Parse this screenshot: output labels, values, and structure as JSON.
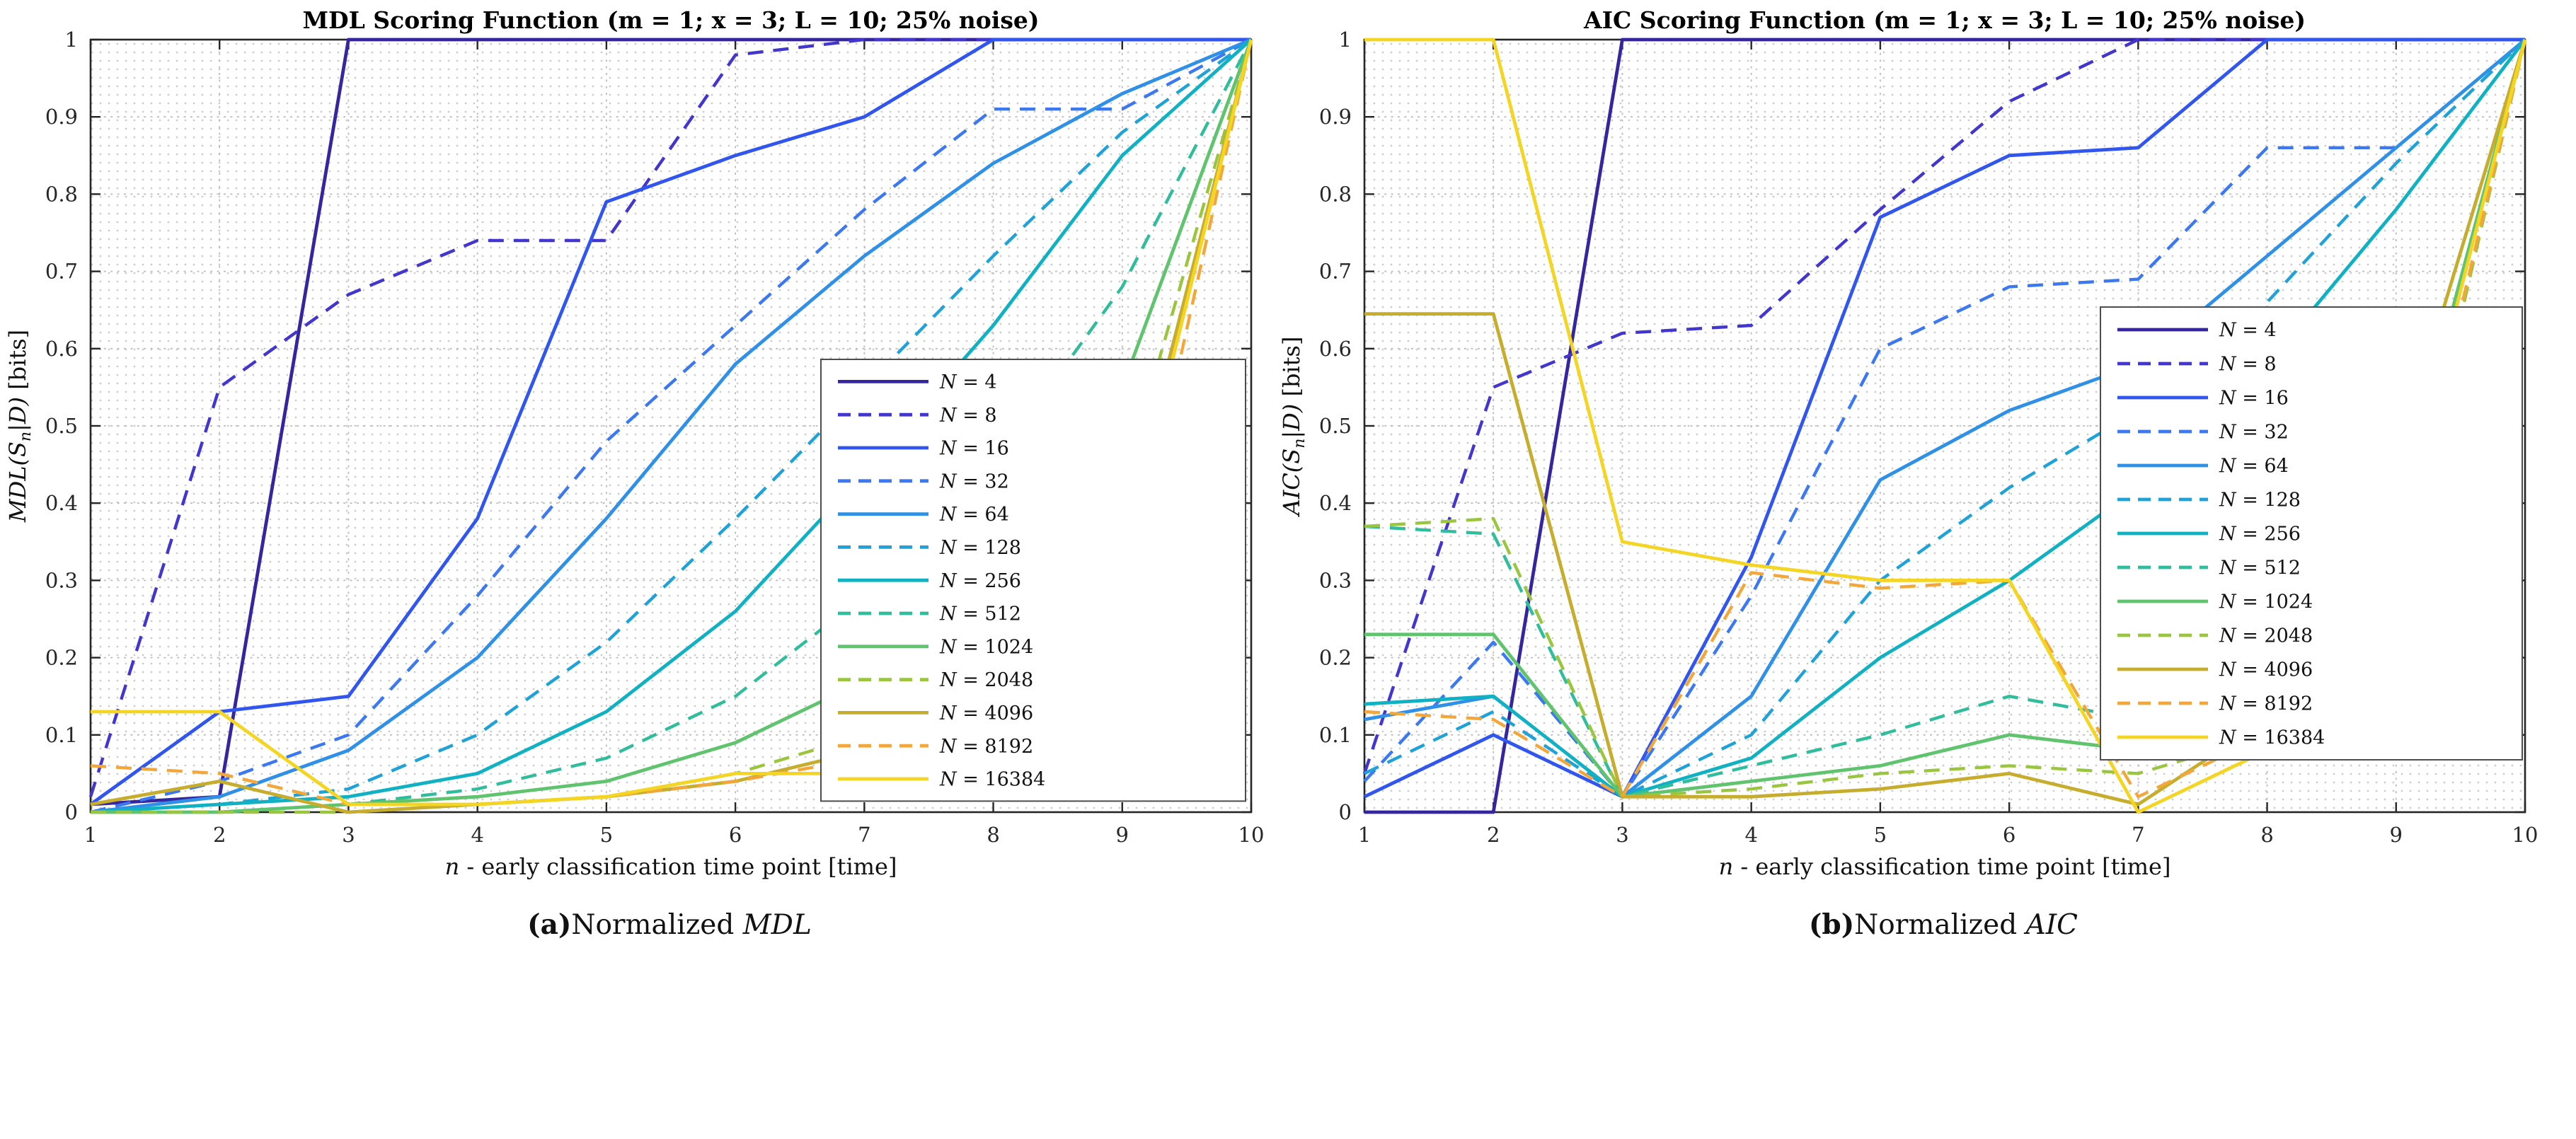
{
  "page": {
    "background": "#ffffff"
  },
  "captions": [
    {
      "label": "(a)",
      "text": "Normalized ",
      "math": "MDL"
    },
    {
      "label": "(b)",
      "text": "Normalized ",
      "math": "AIC"
    }
  ],
  "chart_data": [
    {
      "type": "line",
      "title": "MDL Scoring Function (m = 1; x = 3; L = 10; 25% noise)",
      "xlabel": {
        "var": "n",
        "rest": "- early classification time point",
        "unit": "[time]"
      },
      "ylabel": {
        "fn": "MDL",
        "arg": "S",
        "sub": "n",
        "given": "D",
        "unit": "[bits]"
      },
      "xlim": [
        1,
        10
      ],
      "ylim": [
        0,
        1
      ],
      "grid": "dotted",
      "legend_position": "right-inside",
      "x": [
        1,
        2,
        3,
        4,
        5,
        6,
        7,
        8,
        9,
        10
      ],
      "xticks": [
        "1",
        "2",
        "3",
        "4",
        "5",
        "6",
        "7",
        "8",
        "9",
        "10"
      ],
      "yticks": [
        "0",
        "0.1",
        "0.2",
        "0.3",
        "0.4",
        "0.5",
        "0.6",
        "0.7",
        "0.8",
        "0.9",
        "1"
      ],
      "series": [
        {
          "name": "N = 4",
          "style": "solid",
          "color": "#35269f",
          "values": [
            0.01,
            0.02,
            1,
            1,
            1,
            1,
            1,
            1,
            1,
            1
          ]
        },
        {
          "name": "N = 8",
          "style": "dashed",
          "color": "#4236cf",
          "values": [
            0.02,
            0.55,
            0.67,
            0.74,
            0.74,
            0.98,
            1,
            1,
            1,
            1
          ]
        },
        {
          "name": "N = 16",
          "style": "solid",
          "color": "#3156f0",
          "values": [
            0.01,
            0.13,
            0.15,
            0.38,
            0.79,
            0.85,
            0.9,
            1,
            1,
            1
          ]
        },
        {
          "name": "N = 32",
          "style": "dashed",
          "color": "#3b78f2",
          "values": [
            0.0,
            0.04,
            0.1,
            0.28,
            0.48,
            0.63,
            0.78,
            0.91,
            0.91,
            1
          ]
        },
        {
          "name": "N = 64",
          "style": "solid",
          "color": "#2e90e6",
          "values": [
            0.0,
            0.02,
            0.08,
            0.2,
            0.38,
            0.58,
            0.72,
            0.84,
            0.93,
            1
          ]
        },
        {
          "name": "N = 128",
          "style": "dashed",
          "color": "#1ea2d8",
          "values": [
            0.0,
            0.01,
            0.03,
            0.1,
            0.22,
            0.38,
            0.55,
            0.72,
            0.88,
            1
          ]
        },
        {
          "name": "N = 256",
          "style": "solid",
          "color": "#0fb1c2",
          "values": [
            0.0,
            0.01,
            0.02,
            0.05,
            0.13,
            0.26,
            0.44,
            0.63,
            0.85,
            1
          ]
        },
        {
          "name": "N = 512",
          "style": "dashed",
          "color": "#2fbd9b",
          "values": [
            0.0,
            0.0,
            0.01,
            0.03,
            0.07,
            0.15,
            0.28,
            0.45,
            0.68,
            1
          ]
        },
        {
          "name": "N = 1024",
          "style": "solid",
          "color": "#5fc46d",
          "values": [
            0.0,
            0.0,
            0.01,
            0.02,
            0.04,
            0.09,
            0.17,
            0.32,
            0.55,
            1
          ]
        },
        {
          "name": "N = 2048",
          "style": "dashed",
          "color": "#9ac63f",
          "values": [
            0.0,
            0.0,
            0.0,
            0.01,
            0.02,
            0.05,
            0.1,
            0.2,
            0.42,
            1
          ]
        },
        {
          "name": "N = 4096",
          "style": "solid",
          "color": "#c6ad2d",
          "values": [
            0.01,
            0.04,
            0.0,
            0.01,
            0.02,
            0.04,
            0.08,
            0.15,
            0.35,
            1
          ]
        },
        {
          "name": "N = 8192",
          "style": "dashed",
          "color": "#f3a73b",
          "values": [
            0.06,
            0.05,
            0.01,
            0.01,
            0.02,
            0.04,
            0.07,
            0.12,
            0.25,
            1
          ]
        },
        {
          "name": "N = 16384",
          "style": "solid",
          "color": "#f4d523",
          "values": [
            0.13,
            0.13,
            0.01,
            0.01,
            0.02,
            0.05,
            0.05,
            0.06,
            0.32,
            1
          ]
        }
      ]
    },
    {
      "type": "line",
      "title": "AIC Scoring Function (m = 1; x = 3; L = 10; 25% noise)",
      "xlabel": {
        "var": "n",
        "rest": "- early classification time point",
        "unit": "[time]"
      },
      "ylabel": {
        "fn": "AIC",
        "arg": "S",
        "sub": "n",
        "given": "D",
        "unit": "[bits]"
      },
      "xlim": [
        1,
        10
      ],
      "ylim": [
        0,
        1
      ],
      "grid": "dotted",
      "legend_position": "right-inside",
      "x": [
        1,
        2,
        3,
        4,
        5,
        6,
        7,
        8,
        9,
        10
      ],
      "xticks": [
        "1",
        "2",
        "3",
        "4",
        "5",
        "6",
        "7",
        "8",
        "9",
        "10"
      ],
      "yticks": [
        "0",
        "0.1",
        "0.2",
        "0.3",
        "0.4",
        "0.5",
        "0.6",
        "0.7",
        "0.8",
        "0.9",
        "1"
      ],
      "series": [
        {
          "name": "N = 4",
          "style": "solid",
          "color": "#35269f",
          "values": [
            0.0,
            0.0,
            1,
            1,
            1,
            1,
            1,
            1,
            1,
            1
          ]
        },
        {
          "name": "N = 8",
          "style": "dashed",
          "color": "#4236cf",
          "values": [
            0.05,
            0.55,
            0.62,
            0.63,
            0.78,
            0.92,
            1,
            1,
            1,
            1
          ]
        },
        {
          "name": "N = 16",
          "style": "solid",
          "color": "#3156f0",
          "values": [
            0.02,
            0.1,
            0.02,
            0.33,
            0.77,
            0.85,
            0.86,
            1,
            1,
            1
          ]
        },
        {
          "name": "N = 32",
          "style": "dashed",
          "color": "#3b78f2",
          "values": [
            0.04,
            0.22,
            0.02,
            0.28,
            0.6,
            0.68,
            0.69,
            0.86,
            0.86,
            1
          ]
        },
        {
          "name": "N = 64",
          "style": "solid",
          "color": "#2e90e6",
          "values": [
            0.12,
            0.15,
            0.02,
            0.15,
            0.43,
            0.52,
            0.58,
            0.72,
            0.86,
            1
          ]
        },
        {
          "name": "N = 128",
          "style": "dashed",
          "color": "#1ea2d8",
          "values": [
            0.05,
            0.13,
            0.02,
            0.1,
            0.3,
            0.42,
            0.52,
            0.66,
            0.84,
            1
          ]
        },
        {
          "name": "N = 256",
          "style": "solid",
          "color": "#0fb1c2",
          "values": [
            0.14,
            0.15,
            0.02,
            0.07,
            0.2,
            0.3,
            0.42,
            0.58,
            0.78,
            1
          ]
        },
        {
          "name": "N = 512",
          "style": "dashed",
          "color": "#2fbd9b",
          "values": [
            0.37,
            0.36,
            0.02,
            0.06,
            0.1,
            0.15,
            0.12,
            0.22,
            0.45,
            1
          ]
        },
        {
          "name": "N = 1024",
          "style": "solid",
          "color": "#5fc46d",
          "values": [
            0.23,
            0.23,
            0.02,
            0.04,
            0.06,
            0.1,
            0.08,
            0.15,
            0.38,
            1
          ]
        },
        {
          "name": "N = 2048",
          "style": "dashed",
          "color": "#9ac63f",
          "values": [
            0.37,
            0.38,
            0.02,
            0.03,
            0.05,
            0.06,
            0.05,
            0.1,
            0.28,
            1
          ]
        },
        {
          "name": "N = 4096",
          "style": "solid",
          "color": "#c6ad2d",
          "values": [
            0.645,
            0.645,
            0.02,
            0.02,
            0.03,
            0.05,
            0.01,
            0.12,
            0.45,
            1
          ]
        },
        {
          "name": "N = 8192",
          "style": "dashed",
          "color": "#f3a73b",
          "values": [
            0.13,
            0.12,
            0.02,
            0.31,
            0.29,
            0.3,
            0.02,
            0.1,
            0.3,
            1
          ]
        },
        {
          "name": "N = 16384",
          "style": "solid",
          "color": "#f4d523",
          "values": [
            1,
            1,
            0.35,
            0.32,
            0.3,
            0.3,
            0.0,
            0.08,
            0.35,
            1
          ]
        }
      ]
    }
  ]
}
